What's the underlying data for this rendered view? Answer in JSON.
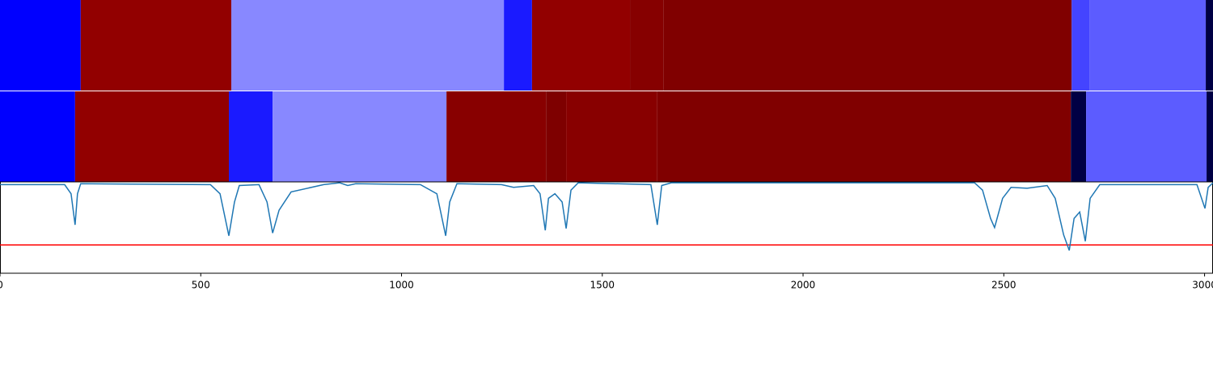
{
  "chart_data": {
    "type": "line",
    "xlim": [
      0,
      3021
    ],
    "ylim": [
      0,
      1
    ],
    "xticks": [
      0,
      500,
      1000,
      1500,
      2000,
      2500,
      3000
    ],
    "tracks": [
      {
        "segments": [
          {
            "start": 0,
            "end": 201,
            "color": "#0000ff"
          },
          {
            "start": 201,
            "end": 576,
            "color": "#920000"
          },
          {
            "start": 576,
            "end": 1255,
            "color": "#8888ff"
          },
          {
            "start": 1255,
            "end": 1325,
            "color": "#1a1aff"
          },
          {
            "start": 1325,
            "end": 1569,
            "color": "#920000"
          },
          {
            "start": 1569,
            "end": 1652,
            "color": "#860000"
          },
          {
            "start": 1652,
            "end": 2669,
            "color": "#800000"
          },
          {
            "start": 2669,
            "end": 2713,
            "color": "#4444ff"
          },
          {
            "start": 2713,
            "end": 3003,
            "color": "#5c5cff"
          },
          {
            "start": 3003,
            "end": 3021,
            "color": "#000044"
          }
        ]
      },
      {
        "segments": [
          {
            "start": 0,
            "end": 187,
            "color": "#0000ff"
          },
          {
            "start": 187,
            "end": 570,
            "color": "#920000"
          },
          {
            "start": 570,
            "end": 679,
            "color": "#1a1aff"
          },
          {
            "start": 679,
            "end": 1112,
            "color": "#8888ff"
          },
          {
            "start": 1112,
            "end": 1360,
            "color": "#880000"
          },
          {
            "start": 1360,
            "end": 1410,
            "color": "#7e0000"
          },
          {
            "start": 1410,
            "end": 1637,
            "color": "#880000"
          },
          {
            "start": 1637,
            "end": 2667,
            "color": "#800000"
          },
          {
            "start": 2667,
            "end": 2705,
            "color": "#000044"
          },
          {
            "start": 2705,
            "end": 3005,
            "color": "#5c5cff"
          },
          {
            "start": 3005,
            "end": 3021,
            "color": "#000044"
          }
        ]
      }
    ],
    "threshold": 0.31,
    "threshold_color": "#ff0000",
    "series": [
      {
        "color": "#1f77b4",
        "x": [
          0,
          161,
          177,
          187,
          193,
          201,
          524,
          548,
          570,
          584,
          596,
          645,
          665,
          679,
          695,
          725,
          806,
          846,
          866,
          886,
          1047,
          1088,
          1110,
          1120,
          1138,
          1249,
          1279,
          1329,
          1345,
          1358,
          1366,
          1382,
          1400,
          1410,
          1422,
          1440,
          1621,
          1637,
          1648,
          1672,
          2427,
          2447,
          2467,
          2477,
          2497,
          2518,
          2558,
          2608,
          2628,
          2649,
          2663,
          2675,
          2689,
          2703,
          2715,
          2739,
          2981,
          3001,
          3009,
          3021
        ],
        "values": [
          0.97,
          0.97,
          0.87,
          0.53,
          0.87,
          0.98,
          0.97,
          0.87,
          0.41,
          0.78,
          0.96,
          0.97,
          0.78,
          0.44,
          0.69,
          0.89,
          0.97,
          0.99,
          0.96,
          0.98,
          0.97,
          0.87,
          0.41,
          0.78,
          0.98,
          0.97,
          0.94,
          0.96,
          0.87,
          0.47,
          0.82,
          0.87,
          0.78,
          0.49,
          0.91,
          0.99,
          0.97,
          0.53,
          0.96,
          0.99,
          0.99,
          0.91,
          0.6,
          0.5,
          0.82,
          0.94,
          0.93,
          0.96,
          0.82,
          0.42,
          0.25,
          0.6,
          0.67,
          0.35,
          0.82,
          0.97,
          0.97,
          0.71,
          0.94,
          0.99
        ]
      }
    ]
  }
}
